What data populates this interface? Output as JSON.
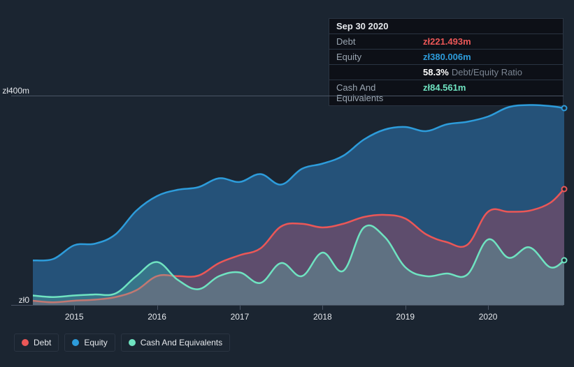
{
  "tooltip": {
    "date": "Sep 30 2020",
    "rows": [
      {
        "label": "Debt",
        "value": "zł221.493m",
        "color": "#eb5757"
      },
      {
        "label": "Equity",
        "value": "zł380.006m",
        "color": "#2d9cdb"
      },
      {
        "label": "",
        "value": "58.3%",
        "extra": "Debt/Equity Ratio",
        "color": "#ffffff"
      },
      {
        "label": "Cash And Equivalents",
        "value": "zł84.561m",
        "color": "#6fe3c1"
      }
    ]
  },
  "chart": {
    "type": "area",
    "background": "#1b2531",
    "grid_color": "#4a5565",
    "ymin": 0,
    "ymax": 400,
    "ylabels": [
      {
        "text": "zł400m",
        "v": 400
      },
      {
        "text": "zł0",
        "v": 0
      }
    ],
    "xmin": 2014.5,
    "xmax": 2020.92,
    "xticks": [
      2015,
      2016,
      2017,
      2018,
      2019,
      2020
    ],
    "series": [
      {
        "name": "Equity",
        "color": "#2d9cdb",
        "fill": "rgba(45,120,180,0.55)",
        "stroke_width": 2.5,
        "points": [
          [
            2014.5,
            85
          ],
          [
            2014.75,
            88
          ],
          [
            2015.0,
            114
          ],
          [
            2015.25,
            117
          ],
          [
            2015.5,
            135
          ],
          [
            2015.75,
            180
          ],
          [
            2016.0,
            208
          ],
          [
            2016.25,
            220
          ],
          [
            2016.5,
            225
          ],
          [
            2016.75,
            242
          ],
          [
            2017.0,
            235
          ],
          [
            2017.25,
            250
          ],
          [
            2017.5,
            230
          ],
          [
            2017.75,
            260
          ],
          [
            2018.0,
            270
          ],
          [
            2018.25,
            285
          ],
          [
            2018.5,
            316
          ],
          [
            2018.75,
            335
          ],
          [
            2019.0,
            340
          ],
          [
            2019.25,
            332
          ],
          [
            2019.5,
            345
          ],
          [
            2019.75,
            350
          ],
          [
            2020.0,
            360
          ],
          [
            2020.25,
            378
          ],
          [
            2020.5,
            382
          ],
          [
            2020.75,
            380
          ],
          [
            2020.92,
            376
          ]
        ]
      },
      {
        "name": "Debt",
        "color": "#eb5757",
        "fill": "rgba(200,70,90,0.35)",
        "stroke_width": 2.5,
        "points": [
          [
            2014.5,
            8
          ],
          [
            2014.75,
            5
          ],
          [
            2015.0,
            8
          ],
          [
            2015.25,
            10
          ],
          [
            2015.5,
            15
          ],
          [
            2015.75,
            28
          ],
          [
            2016.0,
            55
          ],
          [
            2016.25,
            55
          ],
          [
            2016.5,
            56
          ],
          [
            2016.75,
            80
          ],
          [
            2017.0,
            95
          ],
          [
            2017.25,
            108
          ],
          [
            2017.5,
            150
          ],
          [
            2017.75,
            155
          ],
          [
            2018.0,
            148
          ],
          [
            2018.25,
            155
          ],
          [
            2018.5,
            168
          ],
          [
            2018.75,
            172
          ],
          [
            2019.0,
            165
          ],
          [
            2019.25,
            135
          ],
          [
            2019.5,
            120
          ],
          [
            2019.75,
            115
          ],
          [
            2020.0,
            178
          ],
          [
            2020.25,
            178
          ],
          [
            2020.5,
            180
          ],
          [
            2020.75,
            195
          ],
          [
            2020.92,
            222
          ]
        ]
      },
      {
        "name": "Cash And Equivalents",
        "color": "#6fe3c1",
        "fill": "rgba(100,200,180,0.30)",
        "stroke_width": 2.5,
        "points": [
          [
            2014.5,
            18
          ],
          [
            2014.75,
            15
          ],
          [
            2015.0,
            18
          ],
          [
            2015.25,
            20
          ],
          [
            2015.5,
            22
          ],
          [
            2015.75,
            55
          ],
          [
            2016.0,
            82
          ],
          [
            2016.25,
            48
          ],
          [
            2016.5,
            30
          ],
          [
            2016.75,
            55
          ],
          [
            2017.0,
            62
          ],
          [
            2017.25,
            42
          ],
          [
            2017.5,
            80
          ],
          [
            2017.75,
            55
          ],
          [
            2018.0,
            100
          ],
          [
            2018.25,
            65
          ],
          [
            2018.5,
            148
          ],
          [
            2018.75,
            130
          ],
          [
            2019.0,
            72
          ],
          [
            2019.25,
            55
          ],
          [
            2019.5,
            60
          ],
          [
            2019.75,
            58
          ],
          [
            2020.0,
            125
          ],
          [
            2020.25,
            90
          ],
          [
            2020.5,
            110
          ],
          [
            2020.75,
            72
          ],
          [
            2020.92,
            85
          ]
        ]
      }
    ],
    "legend": [
      {
        "label": "Debt",
        "color": "#eb5757"
      },
      {
        "label": "Equity",
        "color": "#2d9cdb"
      },
      {
        "label": "Cash And Equivalents",
        "color": "#6fe3c1"
      }
    ]
  }
}
